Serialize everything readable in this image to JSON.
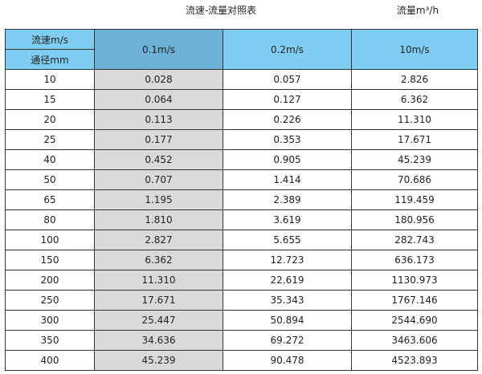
{
  "title": "流速-流量对照表",
  "unit": "流量m³/h",
  "header": {
    "speed_label": "流速m/s",
    "diameter_label": "通径mm",
    "columns": [
      "0.1m/s",
      "0.2m/s",
      "10m/s"
    ]
  },
  "colors": {
    "header": "#7fcdf2",
    "highlight_header": "#6db1d6",
    "highlight_column": "#d9d9d9"
  },
  "rows": [
    [
      "10",
      "0.028",
      "0.057",
      "2.826"
    ],
    [
      "15",
      "0.064",
      "0.127",
      "6.362"
    ],
    [
      "20",
      "0.113",
      "0.226",
      "11.310"
    ],
    [
      "25",
      "0.177",
      "0.353",
      "17.671"
    ],
    [
      "40",
      "0.452",
      "0.905",
      "45.239"
    ],
    [
      "50",
      "0.707",
      "1.414",
      "70.686"
    ],
    [
      "65",
      "1.195",
      "2.389",
      "119.459"
    ],
    [
      "80",
      "1.810",
      "3.619",
      "180.956"
    ],
    [
      "100",
      "2.827",
      "5.655",
      "282.743"
    ],
    [
      "150",
      "6.362",
      "12.723",
      "636.173"
    ],
    [
      "200",
      "11.310",
      "22.619",
      "1130.973"
    ],
    [
      "250",
      "17.671",
      "35.343",
      "1767.146"
    ],
    [
      "300",
      "25.447",
      "50.894",
      "2544.690"
    ],
    [
      "350",
      "34.636",
      "69.272",
      "3463.606"
    ],
    [
      "400",
      "45.239",
      "90.478",
      "4523.893"
    ]
  ]
}
